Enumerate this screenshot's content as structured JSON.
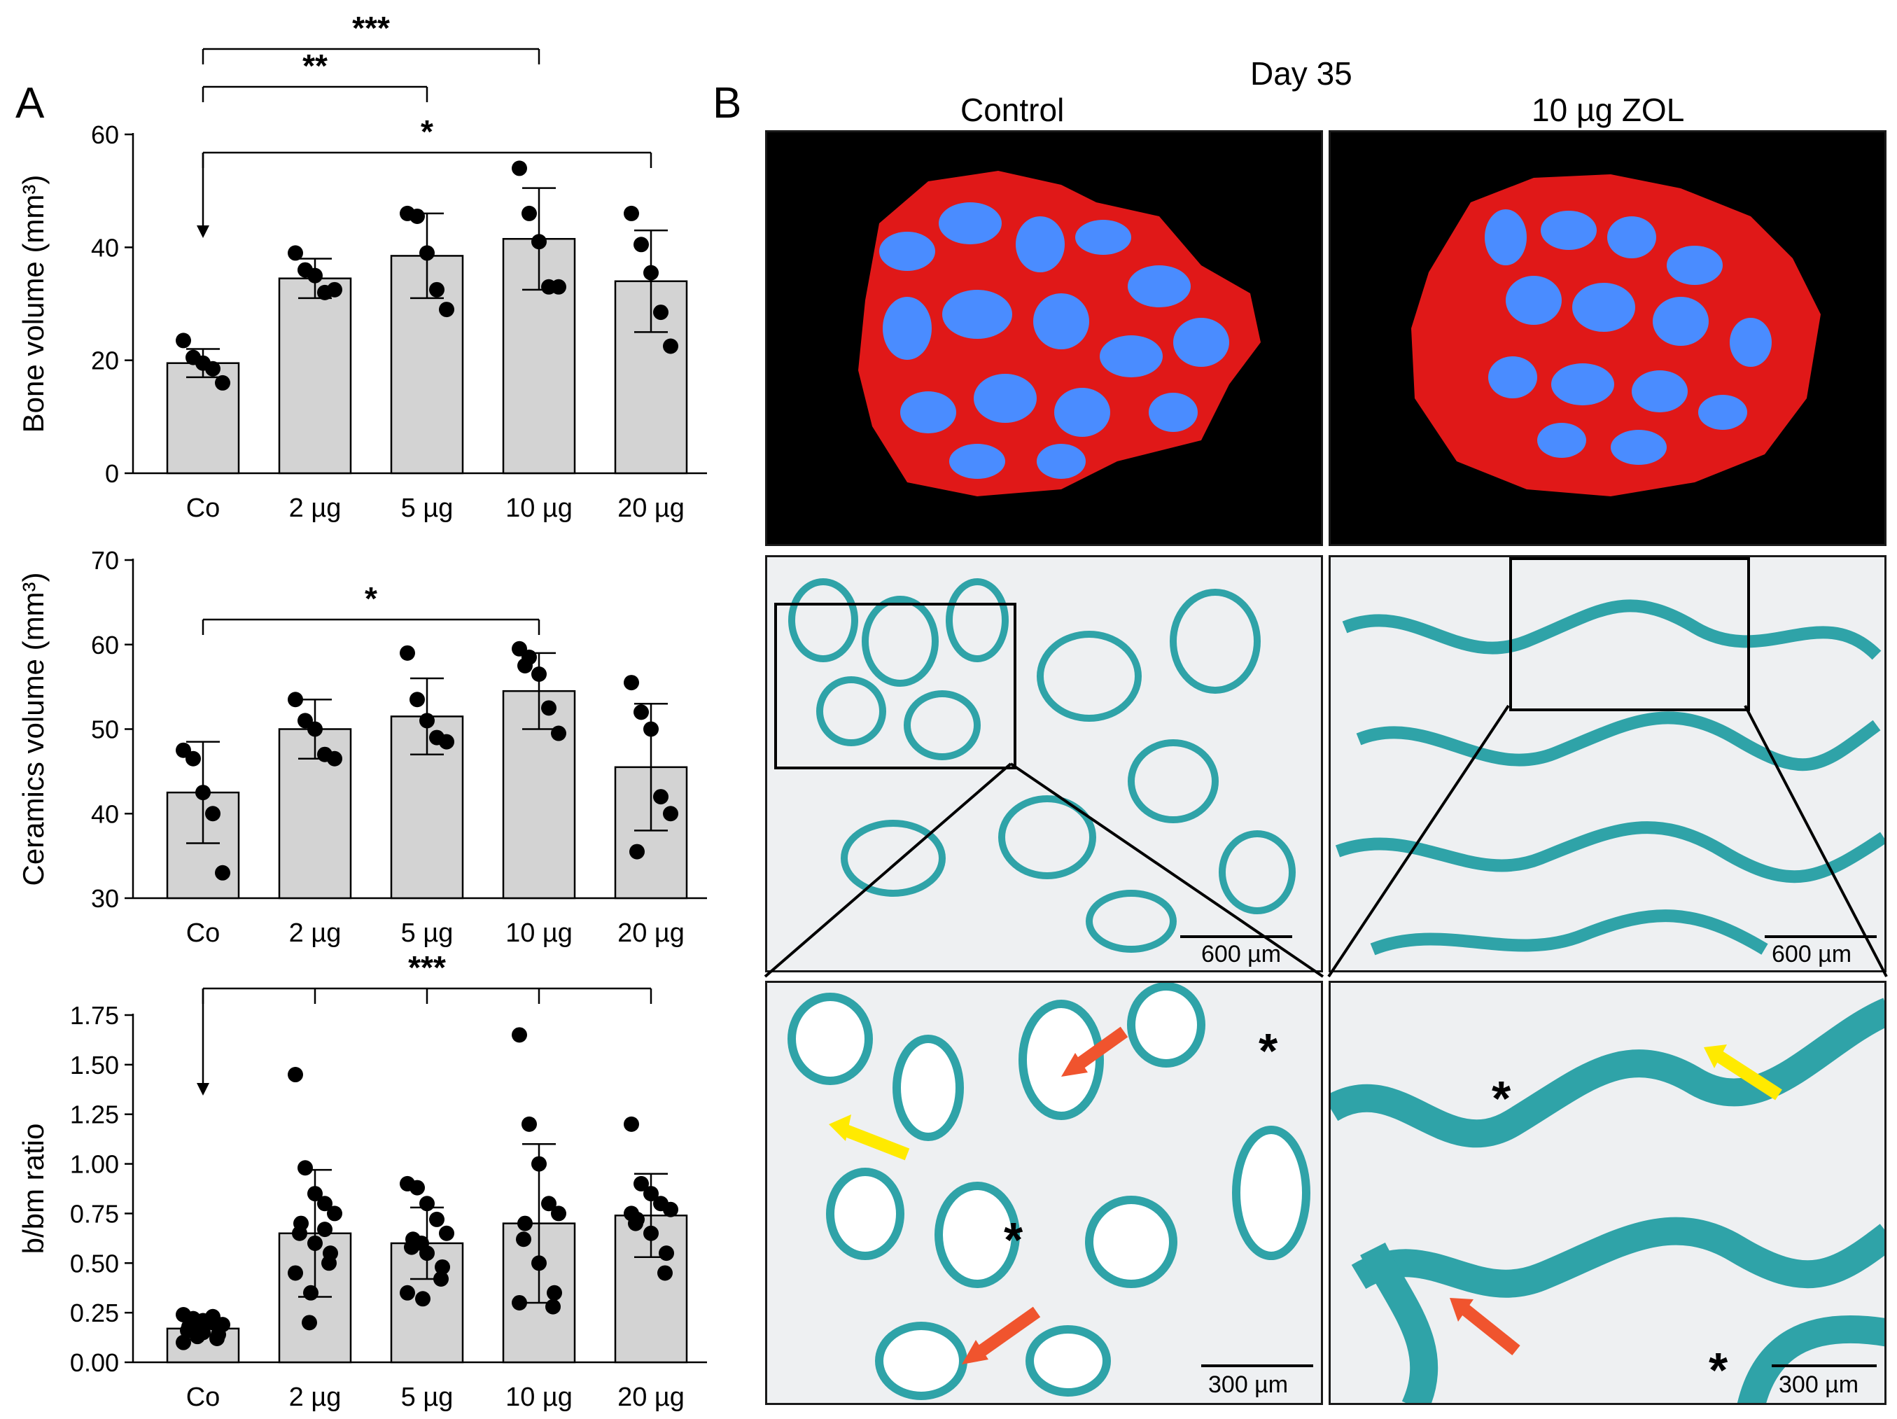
{
  "panel_a": {
    "letter": "A"
  },
  "panel_b": {
    "letter": "B",
    "day_label": "Day 35",
    "col_labels": [
      "Control",
      "10 µg ZOL"
    ],
    "scale_600": "600 µm",
    "scale_300": "300 µm",
    "asterisk": "*"
  },
  "colors": {
    "bar_fill": "#d3d3d3",
    "ct_bone": "#4a8cff",
    "ct_ceramic": "#e01818",
    "histo_bone": "#2fa3a8",
    "arrow_red": "#f0542e",
    "arrow_yellow": "#ffea00"
  },
  "chart_data": [
    {
      "type": "bar",
      "ylabel": "Bone volume (mm³)",
      "categories": [
        "Co",
        "2 µg",
        "5 µg",
        "10 µg",
        "20 µg"
      ],
      "ylim": [
        0,
        60
      ],
      "yticks": [
        "0",
        "20",
        "40",
        "60"
      ],
      "means": [
        19.5,
        34.5,
        38.5,
        41.5,
        34
      ],
      "sd": [
        2.5,
        3.5,
        7.5,
        9,
        9
      ],
      "points": [
        [
          23.5,
          20.5,
          19.5,
          18.5,
          16
        ],
        [
          39,
          36,
          35,
          32,
          32.5
        ],
        [
          46,
          45.5,
          39,
          32.5,
          29
        ],
        [
          54,
          46,
          41,
          33,
          33
        ],
        [
          46,
          40.5,
          35.5,
          28.5,
          22.5
        ]
      ],
      "significance": [
        {
          "from": "Co",
          "to": "10 µg",
          "label": "***"
        },
        {
          "from": "Co",
          "to": "5 µg",
          "label": "**"
        },
        {
          "from": "Co",
          "to": "20 µg",
          "label": "*"
        }
      ]
    },
    {
      "type": "bar",
      "ylabel": "Ceramics volume (mm³)",
      "categories": [
        "Co",
        "2 µg",
        "5 µg",
        "10 µg",
        "20 µg"
      ],
      "ylim": [
        30,
        70
      ],
      "yticks": [
        "30",
        "40",
        "50",
        "60",
        "70"
      ],
      "means": [
        42.5,
        50,
        51.5,
        54.5,
        45.5
      ],
      "sd": [
        6,
        3.5,
        4.5,
        4.5,
        7.5
      ],
      "points": [
        [
          47.5,
          46.5,
          42.5,
          40,
          33
        ],
        [
          53.5,
          51,
          50,
          47,
          46.5
        ],
        [
          59,
          53.5,
          51,
          49,
          48.5
        ],
        [
          59.5,
          58.5,
          56.5,
          52.5,
          49.5,
          57.5
        ],
        [
          55.5,
          52,
          50,
          42,
          40,
          35.5
        ]
      ],
      "significance": [
        {
          "from": "Co",
          "to": "10 µg",
          "label": "*"
        }
      ]
    },
    {
      "type": "bar",
      "ylabel": "b/bm ratio",
      "categories": [
        "Co",
        "2 µg",
        "5 µg",
        "10 µg",
        "20 µg"
      ],
      "ylim": [
        0,
        1.75
      ],
      "yticks": [
        "0.00",
        "0.25",
        "0.50",
        "0.75",
        "1.00",
        "1.25",
        "1.50",
        "1.75"
      ],
      "means": [
        0.17,
        0.65,
        0.6,
        0.7,
        0.74
      ],
      "sd": [
        0.03,
        0.32,
        0.18,
        0.4,
        0.21
      ],
      "points": [
        [
          0.24,
          0.22,
          0.21,
          0.2,
          0.19,
          0.18,
          0.16,
          0.15,
          0.14,
          0.12,
          0.1,
          0.17,
          0.13,
          0.23
        ],
        [
          1.45,
          0.98,
          0.85,
          0.8,
          0.75,
          0.7,
          0.65,
          0.6,
          0.55,
          0.5,
          0.45,
          0.35,
          0.2,
          0.67
        ],
        [
          0.9,
          0.88,
          0.8,
          0.72,
          0.65,
          0.62,
          0.58,
          0.55,
          0.48,
          0.42,
          0.35,
          0.32,
          0.6
        ],
        [
          1.65,
          1.2,
          1.0,
          0.8,
          0.75,
          0.7,
          0.62,
          0.5,
          0.35,
          0.28,
          0.3
        ],
        [
          1.2,
          0.9,
          0.85,
          0.8,
          0.77,
          0.72,
          0.7,
          0.65,
          0.55,
          0.45,
          0.75
        ]
      ],
      "significance": [
        {
          "from": "Co",
          "to": "20 µg",
          "label": "***"
        }
      ]
    }
  ]
}
